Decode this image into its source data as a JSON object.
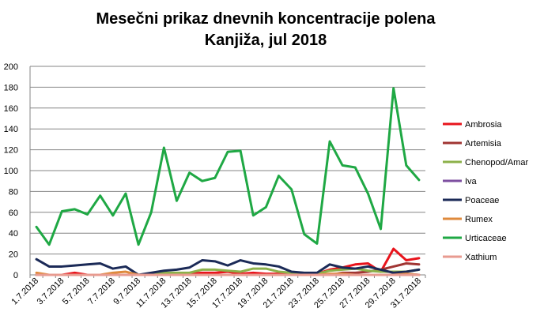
{
  "chart_data": {
    "type": "line",
    "title_lines": [
      "Mesečni prikaz dnevnih koncentracije polena",
      "Kanjiža, jul 2018"
    ],
    "xlabel": "",
    "ylabel": "",
    "ylim": [
      0,
      200
    ],
    "yticks": [
      0,
      20,
      40,
      60,
      80,
      100,
      120,
      140,
      160,
      180,
      200
    ],
    "grid": true,
    "legend_position": "right",
    "x": [
      "1.7.2018",
      "2.7.2018",
      "3.7.2018",
      "4.7.2018",
      "5.7.2018",
      "6.7.2018",
      "7.7.2018",
      "8.7.2018",
      "9.7.2018",
      "10.7.2018",
      "11.7.2018",
      "12.7.2018",
      "13.7.2018",
      "14.7.2018",
      "15.7.2018",
      "16.7.2018",
      "17.7.2018",
      "18.7.2018",
      "19.7.2018",
      "20.7.2018",
      "21.7.2018",
      "22.7.2018",
      "23.7.2018",
      "24.7.2018",
      "25.7.2018",
      "26.7.2018",
      "27.7.2018",
      "28.7.2018",
      "29.7.2018",
      "30.7.2018",
      "31.7.2018"
    ],
    "x_tick_labels": [
      "1.7.2018",
      "",
      "3.7.2018",
      "",
      "5.7.2018",
      "",
      "7.7.2018",
      "",
      "9.7.2018",
      "",
      "11.7.2018",
      "",
      "13.7.2018",
      "",
      "15.7.2018",
      "",
      "17.7.2018",
      "",
      "19.7.2018",
      "",
      "21.7.2018",
      "",
      "23.7.2018",
      "",
      "25.7.2018",
      "",
      "27.7.2018",
      "",
      "29.7.2018",
      "",
      "31.7.2018"
    ],
    "series": [
      {
        "name": "Ambrosia",
        "color": "#e8141c",
        "values": [
          0,
          0,
          0,
          2,
          0,
          0,
          0,
          0,
          0,
          0,
          0,
          1,
          1,
          2,
          2,
          3,
          1,
          2,
          1,
          1,
          1,
          1,
          1,
          5,
          7,
          10,
          11,
          3,
          25,
          14,
          16
        ]
      },
      {
        "name": "Artemisia",
        "color": "#a03533",
        "values": [
          0,
          0,
          0,
          0,
          0,
          0,
          0,
          0,
          0,
          0,
          0,
          0,
          0,
          0,
          0,
          0,
          0,
          0,
          0,
          0,
          0,
          0,
          0,
          0,
          2,
          2,
          3,
          5,
          8,
          11,
          10
        ]
      },
      {
        "name": "Chenopod/Amar",
        "color": "#8cb14a",
        "values": [
          0,
          0,
          0,
          0,
          0,
          0,
          0,
          0,
          0,
          1,
          2,
          2,
          2,
          5,
          5,
          4,
          3,
          6,
          6,
          3,
          2,
          1,
          1,
          4,
          5,
          6,
          4,
          3,
          3,
          3,
          5
        ]
      },
      {
        "name": "Iva",
        "color": "#7d4fa0",
        "values": [
          0,
          0,
          0,
          0,
          0,
          0,
          0,
          0,
          0,
          0,
          0,
          0,
          0,
          0,
          0,
          0,
          0,
          0,
          0,
          0,
          0,
          0,
          0,
          0,
          0,
          0,
          0,
          0,
          0,
          1,
          0
        ]
      },
      {
        "name": "Poaceae",
        "color": "#1b2a57",
        "values": [
          15,
          8,
          8,
          9,
          10,
          11,
          6,
          8,
          0,
          2,
          4,
          5,
          7,
          14,
          13,
          9,
          14,
          11,
          10,
          8,
          3,
          2,
          2,
          10,
          7,
          6,
          8,
          5,
          2,
          3,
          5
        ]
      },
      {
        "name": "Rumex",
        "color": "#df8a3c",
        "values": [
          2,
          0,
          0,
          0,
          0,
          0,
          2,
          3,
          0,
          0,
          0,
          0,
          0,
          0,
          0,
          0,
          0,
          0,
          0,
          0,
          0,
          0,
          0,
          1,
          1,
          0,
          0,
          0,
          0,
          1,
          0
        ]
      },
      {
        "name": "Urticaceae",
        "color": "#1fa844",
        "values": [
          46,
          29,
          61,
          63,
          58,
          76,
          57,
          78,
          29,
          60,
          122,
          71,
          98,
          90,
          93,
          118,
          119,
          57,
          65,
          95,
          82,
          39,
          30,
          128,
          105,
          103,
          78,
          44,
          179,
          105,
          91
        ]
      },
      {
        "name": "Xathium",
        "color": "#e89b90",
        "values": [
          0,
          0,
          0,
          0,
          0,
          0,
          0,
          0,
          0,
          0,
          0,
          0,
          0,
          0,
          0,
          0,
          0,
          0,
          0,
          0,
          0,
          0,
          0,
          0,
          0,
          0,
          0,
          0,
          0,
          0,
          0
        ]
      }
    ]
  }
}
